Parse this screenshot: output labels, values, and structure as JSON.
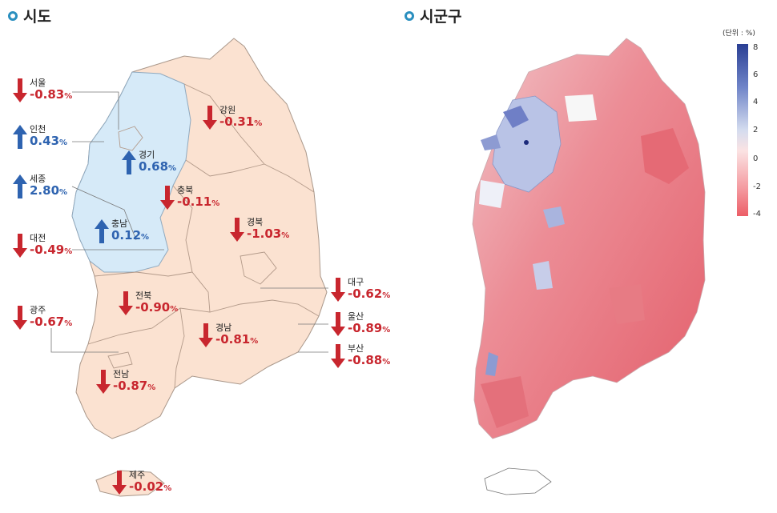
{
  "titles": {
    "left": "시도",
    "right": "시군구"
  },
  "regions": [
    {
      "id": "seoul",
      "name": "서울",
      "value": "-0.83",
      "unit": "%",
      "dir": "down"
    },
    {
      "id": "incheon",
      "name": "인천",
      "value": "0.43",
      "unit": "%",
      "dir": "up"
    },
    {
      "id": "sejong",
      "name": "세종",
      "value": "2.80",
      "unit": "%",
      "dir": "up"
    },
    {
      "id": "daejeon",
      "name": "대전",
      "value": "-0.49",
      "unit": "%",
      "dir": "down"
    },
    {
      "id": "gwangju",
      "name": "광주",
      "value": "-0.67",
      "unit": "%",
      "dir": "down"
    },
    {
      "id": "gangwon",
      "name": "강원",
      "value": "-0.31",
      "unit": "%",
      "dir": "down"
    },
    {
      "id": "gyeonggi",
      "name": "경기",
      "value": "0.68",
      "unit": "%",
      "dir": "up"
    },
    {
      "id": "chungbuk",
      "name": "충북",
      "value": "-0.11",
      "unit": "%",
      "dir": "down"
    },
    {
      "id": "gyeongbuk",
      "name": "경북",
      "value": "-1.03",
      "unit": "%",
      "dir": "down"
    },
    {
      "id": "chungnam",
      "name": "충남",
      "value": "0.12",
      "unit": "%",
      "dir": "up"
    },
    {
      "id": "jeonbuk",
      "name": "전북",
      "value": "-0.90",
      "unit": "%",
      "dir": "down"
    },
    {
      "id": "gyeongnam",
      "name": "경남",
      "value": "-0.81",
      "unit": "%",
      "dir": "down"
    },
    {
      "id": "jeonnam",
      "name": "전남",
      "value": "-0.87",
      "unit": "%",
      "dir": "down"
    },
    {
      "id": "daegu",
      "name": "대구",
      "value": "-0.62",
      "unit": "%",
      "dir": "down"
    },
    {
      "id": "ulsan",
      "name": "울산",
      "value": "-0.89",
      "unit": "%",
      "dir": "down"
    },
    {
      "id": "busan",
      "name": "부산",
      "value": "-0.88",
      "unit": "%",
      "dir": "down"
    },
    {
      "id": "jeju",
      "name": "제주",
      "value": "-0.02",
      "unit": "%",
      "dir": "down"
    }
  ],
  "legend": {
    "unit_label": "(단위 : %)",
    "ticks": [
      "8",
      "6",
      "4",
      "2",
      "0",
      "-2",
      "-4"
    ]
  },
  "colors": {
    "down": "#c8262e",
    "up": "#2e63b0",
    "rise_fill": "#d6eaf8",
    "fall_fill": "#fbe2d1"
  }
}
